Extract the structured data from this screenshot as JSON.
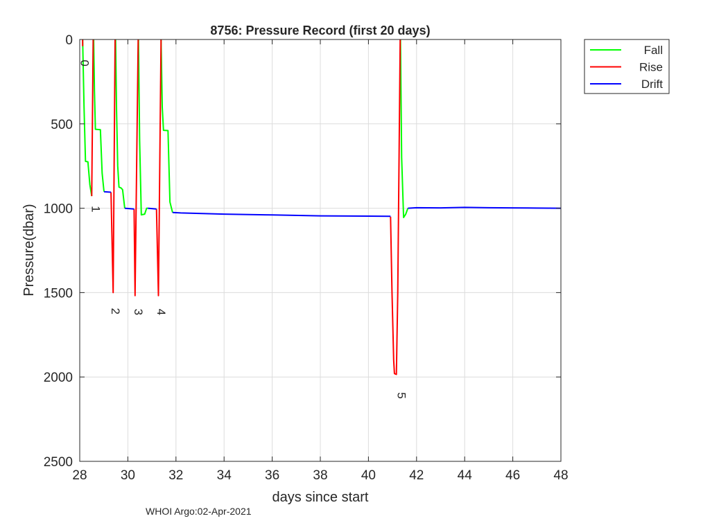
{
  "chart_data": {
    "type": "line",
    "title": "8756: Pressure Record (first 20 days)",
    "xlabel": "days since start",
    "ylabel": "Pressure(dbar)",
    "xlim": [
      28,
      48
    ],
    "ylim": [
      0,
      2500
    ],
    "y_reversed": true,
    "grid": true,
    "xticks": [
      28,
      30,
      32,
      34,
      36,
      38,
      40,
      42,
      44,
      46,
      48
    ],
    "yticks": [
      0,
      500,
      1000,
      1500,
      2000,
      2500
    ],
    "legend": {
      "placement": "outside-top-right",
      "entries": [
        "Fall",
        "Rise",
        "Drift"
      ]
    },
    "footer": "WHOI Argo:02-Apr-2021",
    "series": [
      {
        "name": "Fall",
        "color": "#00ff00",
        "segments": [
          [
            [
              28.12,
              0
            ],
            [
              28.18,
              400
            ],
            [
              28.24,
              722
            ],
            [
              28.34,
              725
            ],
            [
              28.42,
              860
            ],
            [
              28.5,
              928
            ]
          ],
          [
            [
              28.58,
              0
            ],
            [
              28.61,
              300
            ],
            [
              28.65,
              532
            ],
            [
              28.86,
              535
            ],
            [
              28.93,
              792
            ],
            [
              29.01,
              902
            ]
          ],
          [
            [
              29.49,
              0
            ],
            [
              29.53,
              420
            ],
            [
              29.58,
              750
            ],
            [
              29.63,
              875
            ],
            [
              29.72,
              880
            ],
            [
              29.78,
              890
            ],
            [
              29.87,
              1000
            ]
          ],
          [
            [
              30.44,
              0
            ],
            [
              30.49,
              600
            ],
            [
              30.56,
              1039
            ],
            [
              30.7,
              1035
            ],
            [
              30.78,
              1000
            ],
            [
              30.83,
              1000
            ]
          ],
          [
            [
              31.38,
              0
            ],
            [
              31.43,
              400
            ],
            [
              31.48,
              538
            ],
            [
              31.67,
              540
            ],
            [
              31.75,
              963
            ],
            [
              31.86,
              1025
            ]
          ],
          [
            [
              41.33,
              0
            ],
            [
              41.38,
              700
            ],
            [
              41.46,
              1055
            ],
            [
              41.55,
              1035
            ],
            [
              41.64,
              1000
            ]
          ]
        ]
      },
      {
        "name": "Rise",
        "color": "#ff0000",
        "segments": [
          [
            [
              28.12,
              0
            ],
            [
              28.12,
              40
            ]
          ],
          [
            [
              28.5,
              928
            ],
            [
              28.56,
              0
            ]
          ],
          [
            [
              29.3,
              905
            ],
            [
              29.39,
              1500
            ],
            [
              29.47,
              0
            ]
          ],
          [
            [
              30.26,
              1005
            ],
            [
              30.3,
              1518
            ],
            [
              30.43,
              0
            ]
          ],
          [
            [
              31.19,
              1005
            ],
            [
              31.27,
              1518
            ],
            [
              31.38,
              0
            ]
          ],
          [
            [
              40.92,
              1050
            ],
            [
              40.98,
              1500
            ],
            [
              41.05,
              1900
            ],
            [
              41.08,
              1980
            ],
            [
              41.16,
              1985
            ],
            [
              41.22,
              1500
            ],
            [
              41.32,
              0
            ]
          ]
        ]
      },
      {
        "name": "Drift",
        "color": "#0000ff",
        "segments": [
          [
            [
              29.01,
              902
            ],
            [
              29.3,
              905
            ]
          ],
          [
            [
              29.87,
              1000
            ],
            [
              30.26,
              1005
            ]
          ],
          [
            [
              30.83,
              1000
            ],
            [
              31.19,
              1005
            ]
          ],
          [
            [
              31.86,
              1025
            ],
            [
              32.2,
              1028
            ],
            [
              34,
              1035
            ],
            [
              36,
              1040
            ],
            [
              38,
              1045
            ],
            [
              40,
              1047
            ],
            [
              40.92,
              1048
            ]
          ],
          [
            [
              41.64,
              1000
            ],
            [
              42,
              997
            ],
            [
              43,
              998
            ],
            [
              44,
              995
            ],
            [
              45,
              997
            ],
            [
              46,
              998
            ],
            [
              47,
              999
            ],
            [
              48,
              1000
            ]
          ]
        ]
      }
    ],
    "annotations": [
      {
        "text": "0",
        "x": 28.05,
        "y": 140
      },
      {
        "text": "1",
        "x": 28.5,
        "y": 1005
      },
      {
        "text": "2",
        "x": 29.33,
        "y": 1610
      },
      {
        "text": "3",
        "x": 30.27,
        "y": 1615
      },
      {
        "text": "4",
        "x": 31.23,
        "y": 1615
      },
      {
        "text": "5",
        "x": 41.22,
        "y": 2110
      }
    ]
  }
}
